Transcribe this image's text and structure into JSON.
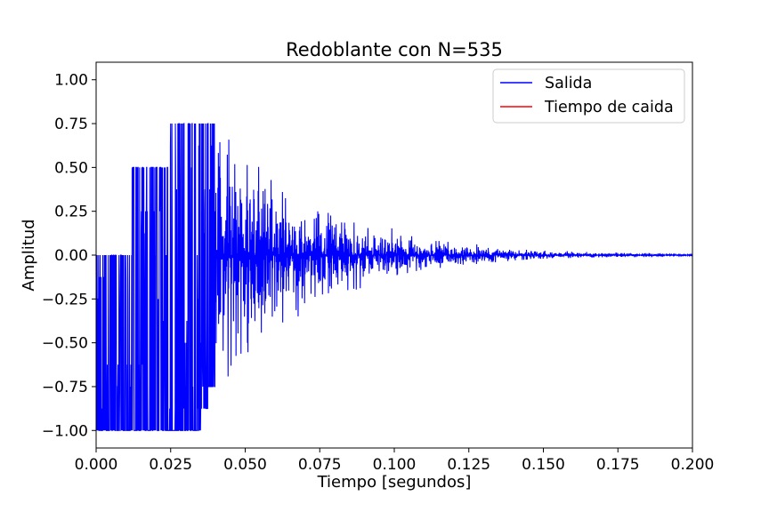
{
  "chart_data": {
    "type": "line",
    "title": "Redoblante con N=535",
    "xlabel": "Tiempo [segundos]",
    "ylabel": "Amplitud",
    "xlim": [
      0.0,
      0.2
    ],
    "ylim": [
      -1.1,
      1.1
    ],
    "x_ticks": [
      "0.000",
      "0.025",
      "0.050",
      "0.075",
      "0.100",
      "0.125",
      "0.150",
      "0.175",
      "0.200"
    ],
    "y_ticks": [
      "1.00",
      "0.75",
      "0.50",
      "0.25",
      "0.00",
      "−0.25",
      "−0.50",
      "−0.75",
      "−1.00"
    ],
    "grid": false,
    "legend_position": "top-right",
    "series": [
      {
        "name": "Salida",
        "color": "#0000ff",
        "envelope_x": [
          0.0,
          0.012,
          0.012,
          0.024,
          0.025,
          0.035,
          0.04,
          0.05,
          0.06,
          0.075,
          0.09,
          0.1,
          0.11,
          0.125,
          0.14,
          0.15,
          0.175,
          0.2
        ],
        "envelope_upper": [
          0.0,
          0.0,
          0.5,
          0.5,
          0.75,
          0.75,
          0.88,
          0.62,
          0.4,
          0.25,
          0.2,
          0.15,
          0.1,
          0.07,
          0.04,
          0.03,
          0.015,
          0.008
        ],
        "envelope_lower": [
          -1.0,
          -1.0,
          -1.0,
          -1.0,
          -1.0,
          -1.0,
          -0.75,
          -0.62,
          -0.45,
          -0.27,
          -0.18,
          -0.12,
          -0.08,
          -0.06,
          -0.03,
          -0.02,
          -0.01,
          -0.005
        ]
      },
      {
        "name": "Tiempo de caida",
        "color": "#ff0000"
      }
    ]
  }
}
